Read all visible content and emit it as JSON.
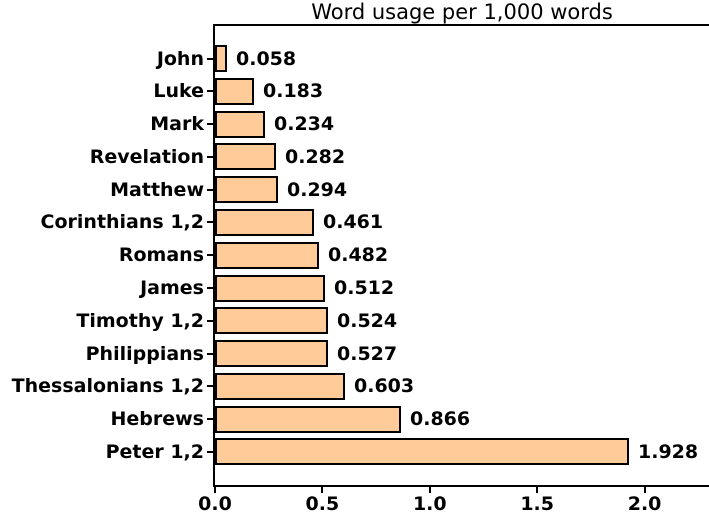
{
  "title": "Word usage per 1,000 words",
  "chart_data": {
    "type": "bar",
    "orientation": "horizontal",
    "title": "Word usage per 1,000 words",
    "xlabel": "",
    "ylabel": "",
    "categories": [
      "John",
      "Luke",
      "Mark",
      "Revelation",
      "Matthew",
      "Corinthians 1,2",
      "Romans",
      "James",
      "Timothy 1,2",
      "Philippians",
      "Thessalonians 1,2",
      "Hebrews",
      "Peter 1,2"
    ],
    "values": [
      0.058,
      0.183,
      0.234,
      0.282,
      0.294,
      0.461,
      0.482,
      0.512,
      0.524,
      0.527,
      0.603,
      0.866,
      1.928
    ],
    "value_labels": [
      "0.058",
      "0.183",
      "0.234",
      "0.282",
      "0.294",
      "0.461",
      "0.482",
      "0.512",
      "0.524",
      "0.527",
      "0.603",
      "0.866",
      "1.928"
    ],
    "x_ticks": [
      "0.0",
      "0.5",
      "1.0",
      "1.5",
      "2.0"
    ],
    "x_tick_values": [
      0.0,
      0.5,
      1.0,
      1.5,
      2.0
    ],
    "xlim": [
      0,
      2.3
    ],
    "grid": false,
    "legend": "none",
    "bar_color": "#FFCC99",
    "bar_edge_color": "#000000",
    "text_color": "#000000",
    "background_color": "#FFFFFF"
  }
}
